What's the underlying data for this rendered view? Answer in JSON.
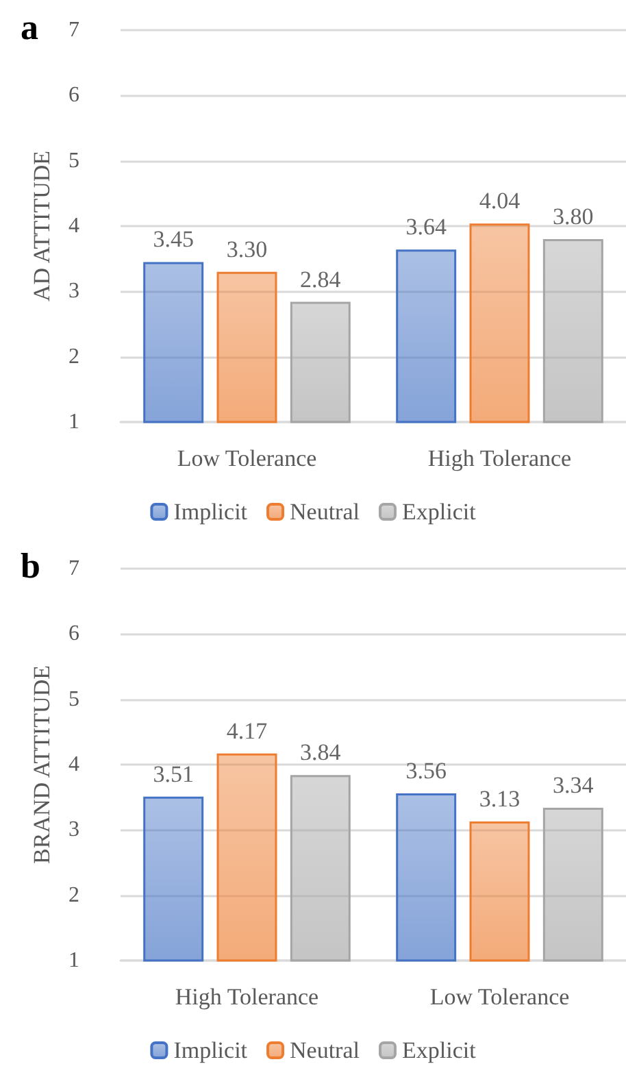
{
  "chart_data": [
    {
      "type": "bar",
      "title": "a",
      "ylabel": "AD ATTITUDE",
      "categories": [
        "Low Tolerance",
        "High Tolerance"
      ],
      "series": [
        {
          "name": "Implicit",
          "color": "#4472c4",
          "values": [
            3.45,
            3.64
          ],
          "value_labels": [
            "3.45",
            "3.64"
          ]
        },
        {
          "name": "Neutral",
          "color": "#ed7d31",
          "values": [
            3.3,
            4.04
          ],
          "value_labels": [
            "3.30",
            "4.04"
          ]
        },
        {
          "name": "Explicit",
          "color": "#a5a5a5",
          "values": [
            2.84,
            3.8
          ],
          "value_labels": [
            "2.84",
            "3.80"
          ]
        }
      ],
      "ylim": [
        1,
        7
      ],
      "yticks": [
        1,
        2,
        3,
        4,
        5,
        6,
        7
      ],
      "grid": "y",
      "legend": "bottom"
    },
    {
      "type": "bar",
      "title": "b",
      "ylabel": "BRAND ATTITUDE",
      "categories": [
        "High Tolerance",
        "Low Tolerance"
      ],
      "series": [
        {
          "name": "Implicit",
          "color": "#4472c4",
          "values": [
            3.51,
            3.56
          ],
          "value_labels": [
            "3.51",
            "3.56"
          ]
        },
        {
          "name": "Neutral",
          "color": "#ed7d31",
          "values": [
            4.17,
            3.13
          ],
          "value_labels": [
            "4.17",
            "3.13"
          ]
        },
        {
          "name": "Explicit",
          "color": "#a5a5a5",
          "values": [
            3.84,
            3.34
          ],
          "value_labels": [
            "3.84",
            "3.34"
          ]
        }
      ],
      "ylim": [
        1,
        7
      ],
      "yticks": [
        1,
        2,
        3,
        4,
        5,
        6,
        7
      ],
      "grid": "y",
      "legend": "bottom"
    }
  ]
}
